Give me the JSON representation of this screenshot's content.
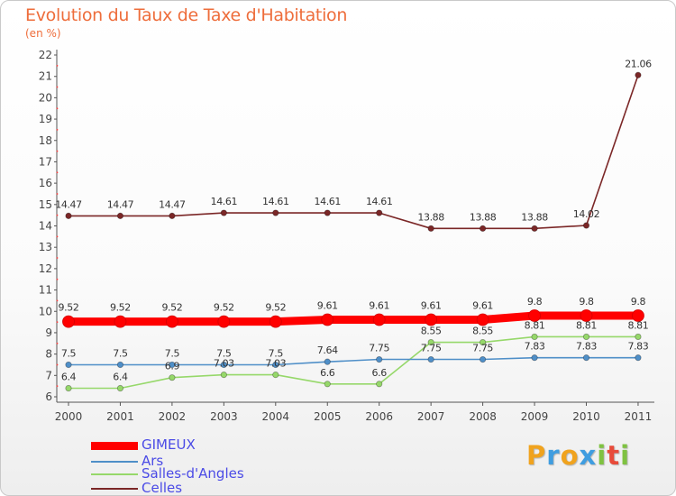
{
  "title": "Evolution du Taux de Taxe d'Habitation",
  "subtitle": "(en %)",
  "logo": {
    "letters": [
      "P",
      "r",
      "o",
      "x",
      "i",
      "t",
      "i"
    ],
    "colors": [
      "#f0a31e",
      "#3f9de0",
      "#f0a31e",
      "#3f9de0",
      "#7fc241",
      "#e84b3a",
      "#7fc241"
    ]
  },
  "chart_data": {
    "type": "line",
    "categories": [
      "2000",
      "2001",
      "2002",
      "2003",
      "2004",
      "2005",
      "2006",
      "2007",
      "2008",
      "2009",
      "2010",
      "2011"
    ],
    "ylim": [
      6,
      22
    ],
    "yticks": [
      "6",
      "7",
      "8",
      "9",
      "10",
      "11",
      "12",
      "13",
      "14",
      "15",
      "16",
      "17",
      "18",
      "19",
      "20",
      "21",
      "22"
    ],
    "grid": false,
    "legend_position": "bottom-left",
    "series": [
      {
        "name": "GIMEUX",
        "color": "#ff0000",
        "values": [
          9.52,
          9.52,
          9.52,
          9.52,
          9.52,
          9.61,
          9.61,
          9.61,
          9.61,
          9.8,
          9.8,
          9.8
        ],
        "labels": [
          "9.52",
          "9.52",
          "9.52",
          "9.52",
          "9.52",
          "9.61",
          "9.61",
          "9.61",
          "9.61",
          "9.8",
          "9.8",
          "9.8"
        ]
      },
      {
        "name": "Ars",
        "color": "#4f8fc8",
        "values": [
          7.5,
          7.5,
          7.5,
          7.5,
          7.5,
          7.64,
          7.75,
          7.75,
          7.75,
          7.83,
          7.83,
          7.83
        ],
        "labels": [
          "7.5",
          "7.5",
          "7.5",
          "7.5",
          "7.5",
          "7.64",
          "7.75",
          "7.75",
          "7.75",
          "7.83",
          "7.83",
          "7.83"
        ]
      },
      {
        "name": "Salles-d'Angles",
        "color": "#96d86a",
        "values": [
          6.4,
          6.4,
          6.9,
          7.03,
          7.03,
          6.6,
          6.6,
          8.55,
          8.55,
          8.81,
          8.81,
          8.81
        ],
        "labels": [
          "6.4",
          "6.4",
          "6.9",
          "7.03",
          "7.03",
          "6.6",
          "6.6",
          "8.55",
          "8.55",
          "8.81",
          "8.81",
          "8.81"
        ]
      },
      {
        "name": "Celles",
        "color": "#7b2727",
        "values": [
          14.47,
          14.47,
          14.47,
          14.61,
          14.61,
          14.61,
          14.61,
          13.88,
          13.88,
          13.88,
          14.02,
          21.06
        ],
        "labels": [
          "14.47",
          "14.47",
          "14.47",
          "14.61",
          "14.61",
          "14.61",
          "14.61",
          "13.88",
          "13.88",
          "13.88",
          "14.02",
          "21.06"
        ]
      }
    ]
  }
}
